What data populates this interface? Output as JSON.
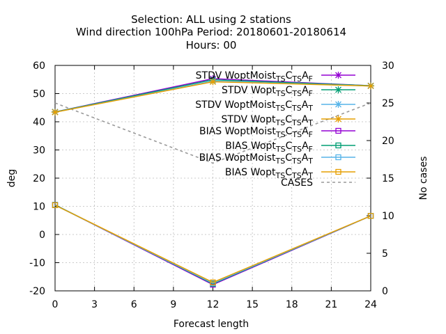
{
  "chart_data": {
    "type": "line",
    "title_lines": [
      "Selection: ALL using     2 stations",
      "Wind direction 100hPa   Period: 20180601-20180614",
      "Hours:  00"
    ],
    "xlabel": "Forecast length",
    "ylabel": "deg",
    "y2label": "No cases",
    "x": [
      0,
      12,
      24
    ],
    "xlim": [
      0,
      24
    ],
    "ylim": [
      -20,
      60
    ],
    "y2lim": [
      0,
      30
    ],
    "xticks": [
      0,
      3,
      6,
      9,
      12,
      15,
      18,
      21,
      24
    ],
    "yticks": [
      -20,
      -10,
      0,
      10,
      20,
      30,
      40,
      50,
      60
    ],
    "y2ticks": [
      0,
      5,
      10,
      15,
      20,
      25,
      30
    ],
    "grid": true,
    "legend_position": "top-right",
    "series": [
      {
        "name": "STDV WoptMoist",
        "sub1": "TS",
        "mid": "C",
        "sub2": "TS",
        "end": "A",
        "sub3": "F",
        "color": "#9400d3",
        "marker": "star",
        "axis": "y",
        "values": [
          43.5,
          55.3,
          52.8
        ]
      },
      {
        "name": "STDV Wopt",
        "sub1": "TS",
        "mid": "C",
        "sub2": "TS",
        "end": "A",
        "sub3": "F",
        "color": "#009e73",
        "marker": "star",
        "axis": "y",
        "values": [
          43.5,
          54.9,
          52.8
        ]
      },
      {
        "name": "STDV WoptMoist",
        "sub1": "TS",
        "mid": "C",
        "sub2": "TS",
        "end": "A",
        "sub3": "T",
        "color": "#56b4e9",
        "marker": "star",
        "axis": "y",
        "values": [
          43.4,
          54.4,
          52.7
        ]
      },
      {
        "name": "STDV Wopt",
        "sub1": "TS",
        "mid": "C",
        "sub2": "TS",
        "end": "A",
        "sub3": "T",
        "color": "#e69f00",
        "marker": "star",
        "axis": "y",
        "values": [
          43.4,
          54.2,
          52.7
        ]
      },
      {
        "name": "BIAS WoptMoist",
        "sub1": "TS",
        "mid": "C",
        "sub2": "TS",
        "end": "A",
        "sub3": "F",
        "color": "#9400d3",
        "marker": "square",
        "axis": "y",
        "values": [
          10.5,
          -17.8,
          6.6
        ]
      },
      {
        "name": "BIAS Wopt",
        "sub1": "TS",
        "mid": "C",
        "sub2": "TS",
        "end": "A",
        "sub3": "F",
        "color": "#009e73",
        "marker": "square",
        "axis": "y",
        "values": [
          10.5,
          -17.5,
          6.6
        ]
      },
      {
        "name": "BIAS WoptMoist",
        "sub1": "TS",
        "mid": "C",
        "sub2": "TS",
        "end": "A",
        "sub3": "T",
        "color": "#56b4e9",
        "marker": "square",
        "axis": "y",
        "values": [
          10.4,
          -17.3,
          6.6
        ]
      },
      {
        "name": "BIAS Wopt",
        "sub1": "TS",
        "mid": "C",
        "sub2": "TS",
        "end": "A",
        "sub3": "T",
        "color": "#e69f00",
        "marker": "square",
        "axis": "y",
        "values": [
          10.4,
          -17.0,
          6.6
        ]
      },
      {
        "name": "CASES",
        "sub1": "",
        "mid": "",
        "sub2": "",
        "end": "",
        "sub3": "",
        "color": "#999999",
        "marker": "none",
        "dashed": true,
        "axis": "y2",
        "values": [
          25,
          17,
          25
        ]
      }
    ]
  }
}
